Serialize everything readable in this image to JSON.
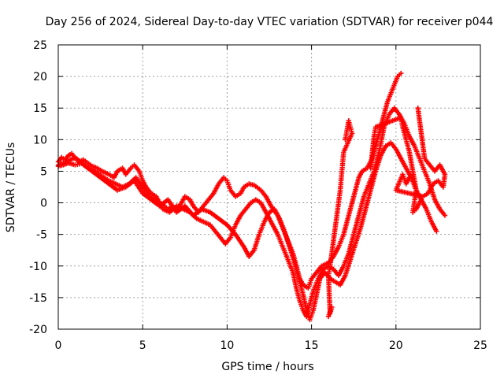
{
  "chart_data": {
    "type": "scatter",
    "title": "Day 256 of 2024, Sidereal Day-to-day VTEC variation (SDTVAR) for receiver p044",
    "xlabel": "GPS time / hours",
    "ylabel": "SDTVAR / TECUs",
    "xlim": [
      0,
      25
    ],
    "ylim": [
      -20,
      25
    ],
    "xticks": [
      0,
      5,
      10,
      15,
      20,
      25
    ],
    "yticks": [
      -20,
      -15,
      -10,
      -5,
      0,
      5,
      10,
      15,
      20,
      25
    ],
    "grid": true,
    "legend": "none",
    "marker": "plus",
    "color": "#ff0000",
    "series": [
      {
        "points": [
          [
            0,
            6.5
          ],
          [
            0.2,
            7.2
          ],
          [
            0.4,
            6.8
          ],
          [
            0.6,
            7.5
          ],
          [
            0.8,
            7.8
          ],
          [
            1.0,
            7.0
          ],
          [
            1.2,
            6.5
          ],
          [
            1.5,
            6.8
          ],
          [
            1.8,
            6.2
          ],
          [
            2.0,
            5.8
          ],
          [
            2.3,
            5.5
          ],
          [
            2.6,
            5.0
          ],
          [
            3.0,
            4.5
          ],
          [
            3.3,
            4.0
          ],
          [
            3.5,
            5.0
          ],
          [
            3.8,
            5.5
          ],
          [
            4.0,
            4.5
          ],
          [
            4.3,
            5.5
          ],
          [
            4.5,
            6.0
          ],
          [
            4.8,
            5.0
          ],
          [
            5.0,
            3.5
          ],
          [
            5.2,
            2.5
          ],
          [
            5.5,
            1.5
          ],
          [
            5.8,
            1.0
          ],
          [
            6.0,
            0.0
          ],
          [
            6.3,
            -0.5
          ],
          [
            6.5,
            -1.0
          ],
          [
            6.8,
            -0.5
          ],
          [
            7.0,
            -1.0
          ],
          [
            7.3,
            0.0
          ],
          [
            7.5,
            1.0
          ],
          [
            7.8,
            0.5
          ],
          [
            8.0,
            -0.5
          ],
          [
            8.3,
            -1.5
          ],
          [
            8.6,
            -0.5
          ],
          [
            8.9,
            0.5
          ],
          [
            9.2,
            1.5
          ],
          [
            9.5,
            3.0
          ],
          [
            9.8,
            4.0
          ],
          [
            10.0,
            3.5
          ],
          [
            10.2,
            2.0
          ],
          [
            10.5,
            1.0
          ],
          [
            10.8,
            1.5
          ],
          [
            11.0,
            2.5
          ],
          [
            11.3,
            3.0
          ],
          [
            11.6,
            2.8
          ],
          [
            12.0,
            2.0
          ],
          [
            12.3,
            1.0
          ],
          [
            12.6,
            -0.5
          ],
          [
            13.0,
            -2.0
          ],
          [
            13.3,
            -4.0
          ],
          [
            13.6,
            -6.0
          ],
          [
            13.9,
            -8.0
          ],
          [
            14.1,
            -10.0
          ],
          [
            14.3,
            -12.0
          ],
          [
            14.5,
            -13.0
          ],
          [
            14.8,
            -13.5
          ],
          [
            15.0,
            -12.0
          ],
          [
            15.3,
            -11.0
          ],
          [
            15.6,
            -10.0
          ],
          [
            16.0,
            -9.5
          ],
          [
            16.3,
            -8.5
          ],
          [
            16.6,
            -7.0
          ],
          [
            16.9,
            -5.0
          ],
          [
            17.2,
            -2.0
          ],
          [
            17.5,
            1.0
          ],
          [
            17.8,
            4.0
          ],
          [
            18.0,
            5.0
          ],
          [
            18.3,
            5.5
          ],
          [
            18.6,
            7.0
          ],
          [
            18.9,
            10.0
          ],
          [
            19.2,
            13.0
          ],
          [
            19.5,
            16.0
          ],
          [
            19.8,
            18.0
          ],
          [
            20.1,
            20.0
          ],
          [
            20.3,
            20.5
          ]
        ]
      },
      {
        "points": [
          [
            0,
            5.8
          ],
          [
            0.3,
            6.0
          ],
          [
            0.6,
            6.3
          ],
          [
            1.0,
            6.0
          ],
          [
            1.4,
            6.2
          ],
          [
            1.8,
            5.5
          ],
          [
            2.2,
            5.0
          ],
          [
            2.6,
            4.2
          ],
          [
            3.0,
            3.5
          ],
          [
            3.4,
            3.0
          ],
          [
            3.8,
            2.5
          ],
          [
            4.2,
            3.0
          ],
          [
            4.6,
            4.0
          ],
          [
            5.0,
            2.5
          ],
          [
            5.4,
            1.0
          ],
          [
            5.8,
            0.5
          ],
          [
            6.2,
            -1.0
          ],
          [
            6.6,
            -1.5
          ],
          [
            7.0,
            -0.5
          ],
          [
            7.4,
            -1.0
          ],
          [
            7.8,
            -1.5
          ],
          [
            8.2,
            -2.5
          ],
          [
            8.6,
            -3.0
          ],
          [
            9.0,
            -3.5
          ],
          [
            9.3,
            -4.5
          ],
          [
            9.6,
            -5.5
          ],
          [
            9.9,
            -6.5
          ],
          [
            10.2,
            -5.5
          ],
          [
            10.5,
            -3.5
          ],
          [
            10.8,
            -2.0
          ],
          [
            11.1,
            -1.0
          ],
          [
            11.4,
            0.0
          ],
          [
            11.7,
            0.5
          ],
          [
            12.0,
            0.0
          ],
          [
            12.3,
            -1.5
          ],
          [
            12.6,
            -3.0
          ],
          [
            13.0,
            -5.0
          ],
          [
            13.3,
            -7.0
          ],
          [
            13.6,
            -9.0
          ],
          [
            13.9,
            -11.0
          ],
          [
            14.1,
            -13.5
          ],
          [
            14.3,
            -15.5
          ],
          [
            14.5,
            -17.0
          ],
          [
            14.7,
            -18.0
          ],
          [
            14.9,
            -16.0
          ],
          [
            15.1,
            -14.0
          ],
          [
            15.4,
            -12.0
          ],
          [
            15.7,
            -10.5
          ],
          [
            16.0,
            -10.0
          ],
          [
            16.3,
            -10.5
          ],
          [
            16.6,
            -11.5
          ],
          [
            16.9,
            -10.0
          ],
          [
            17.2,
            -8.0
          ],
          [
            17.5,
            -5.0
          ],
          [
            17.8,
            -2.0
          ],
          [
            18.1,
            1.0
          ],
          [
            18.4,
            3.0
          ],
          [
            18.7,
            5.0
          ],
          [
            19.0,
            8.0
          ],
          [
            19.3,
            12.0
          ],
          [
            19.6,
            14.0
          ],
          [
            19.9,
            15.0
          ],
          [
            20.2,
            14.0
          ],
          [
            20.5,
            12.5
          ],
          [
            20.8,
            10.5
          ],
          [
            21.1,
            9.0
          ],
          [
            21.4,
            7.0
          ],
          [
            21.7,
            5.0
          ],
          [
            22.0,
            3.0
          ],
          [
            22.3,
            0.5
          ],
          [
            22.6,
            -1.0
          ],
          [
            22.9,
            -2.0
          ]
        ]
      },
      {
        "points": [
          [
            0,
            6.0
          ],
          [
            0.5,
            6.5
          ],
          [
            1.0,
            7.2
          ],
          [
            1.5,
            6.0
          ],
          [
            2.0,
            5.0
          ],
          [
            2.5,
            4.0
          ],
          [
            3.0,
            3.0
          ],
          [
            3.5,
            2.0
          ],
          [
            4.0,
            2.5
          ],
          [
            4.5,
            3.5
          ],
          [
            5.0,
            1.5
          ],
          [
            5.5,
            0.5
          ],
          [
            6.0,
            -0.5
          ],
          [
            6.5,
            0.5
          ],
          [
            7.0,
            -1.5
          ],
          [
            7.5,
            -0.5
          ],
          [
            8.0,
            -2.0
          ],
          [
            8.5,
            -1.0
          ],
          [
            9.0,
            -1.5
          ],
          [
            9.5,
            -2.5
          ],
          [
            10.0,
            -3.5
          ],
          [
            10.5,
            -5.0
          ],
          [
            11.0,
            -7.0
          ],
          [
            11.3,
            -8.5
          ],
          [
            11.6,
            -7.5
          ],
          [
            11.9,
            -5.0
          ],
          [
            12.2,
            -3.0
          ],
          [
            12.5,
            -1.5
          ],
          [
            12.8,
            -1.0
          ],
          [
            13.1,
            -2.5
          ],
          [
            13.4,
            -4.5
          ],
          [
            13.7,
            -7.0
          ],
          [
            14.0,
            -9.5
          ],
          [
            14.3,
            -12.5
          ],
          [
            14.5,
            -14.5
          ],
          [
            14.7,
            -17.0
          ],
          [
            14.9,
            -18.5
          ],
          [
            15.1,
            -17.0
          ],
          [
            15.3,
            -14.5
          ],
          [
            15.5,
            -12.0
          ],
          [
            15.8,
            -11.0
          ],
          [
            16.1,
            -12.0
          ],
          [
            16.4,
            -12.5
          ],
          [
            16.7,
            -13.0
          ],
          [
            17.0,
            -11.5
          ],
          [
            17.3,
            -9.0
          ],
          [
            17.6,
            -6.5
          ],
          [
            17.9,
            -4.0
          ],
          [
            18.2,
            -1.0
          ],
          [
            18.5,
            2.0
          ],
          [
            18.8,
            5.0
          ],
          [
            19.1,
            7.5
          ],
          [
            19.4,
            9.0
          ],
          [
            19.7,
            9.5
          ],
          [
            20.0,
            8.5
          ],
          [
            20.3,
            7.0
          ],
          [
            20.6,
            5.5
          ],
          [
            20.9,
            4.0
          ],
          [
            21.2,
            2.0
          ],
          [
            21.5,
            0.5
          ],
          [
            21.8,
            -1.0
          ],
          [
            22.1,
            -3.0
          ],
          [
            22.4,
            -4.5
          ]
        ]
      },
      {
        "points": [
          [
            17.0,
            10.0
          ],
          [
            17.1,
            11.5
          ],
          [
            17.2,
            13.0
          ],
          [
            17.3,
            12.0
          ],
          [
            17.4,
            11.0
          ],
          [
            16.9,
            8.0
          ],
          [
            16.8,
            5.0
          ],
          [
            16.7,
            2.0
          ],
          [
            16.6,
            0.0
          ],
          [
            16.5,
            -2.0
          ],
          [
            16.4,
            -4.0
          ],
          [
            16.3,
            -6.0
          ],
          [
            16.2,
            -8.0
          ],
          [
            16.1,
            -10.0
          ],
          [
            16.0,
            -11.5
          ],
          [
            16.1,
            -17.5
          ],
          [
            16.2,
            -16.5
          ],
          [
            16.0,
            -18.0
          ],
          [
            18.5,
            5.5
          ],
          [
            18.6,
            8.0
          ],
          [
            18.7,
            10.5
          ],
          [
            18.8,
            12.0
          ],
          [
            20.3,
            13.5
          ],
          [
            20.4,
            12.0
          ],
          [
            20.6,
            10.0
          ],
          [
            20.8,
            8.0
          ],
          [
            21.0,
            5.0
          ],
          [
            21.2,
            2.0
          ],
          [
            21.0,
            -1.5
          ],
          [
            21.2,
            -1.0
          ],
          [
            21.5,
            0.5
          ],
          [
            21.3,
            15.0
          ],
          [
            21.4,
            13.0
          ],
          [
            21.5,
            11.0
          ],
          [
            21.6,
            9.0
          ],
          [
            21.7,
            7.0
          ],
          [
            22.0,
            6.0
          ],
          [
            22.3,
            5.0
          ],
          [
            22.6,
            6.0
          ],
          [
            22.9,
            4.5
          ],
          [
            22.8,
            2.5
          ],
          [
            22.5,
            3.5
          ],
          [
            22.2,
            3.0
          ],
          [
            21.9,
            1.5
          ],
          [
            21.6,
            1.0
          ],
          [
            20.0,
            2.0
          ],
          [
            20.4,
            4.5
          ],
          [
            20.6,
            3.0
          ],
          [
            20.8,
            4.0
          ]
        ]
      }
    ]
  }
}
